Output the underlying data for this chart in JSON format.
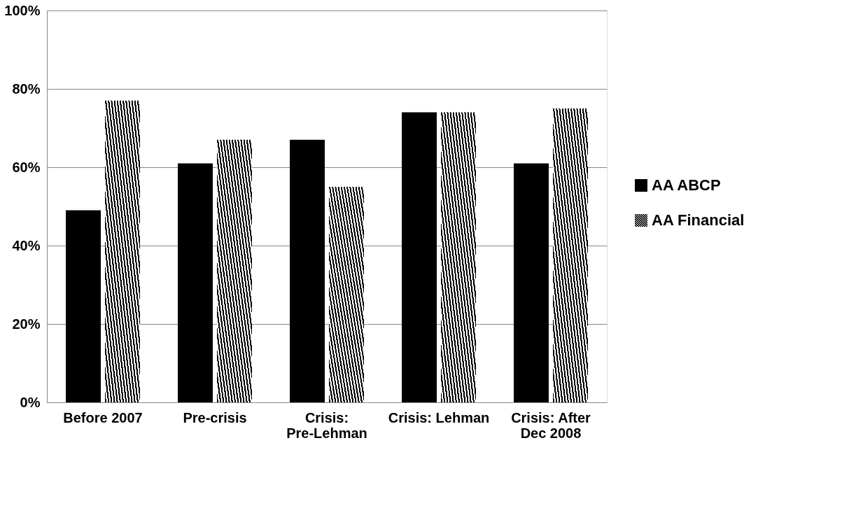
{
  "chart_data": {
    "type": "bar",
    "categories": [
      "Before 2007",
      "Pre-crisis",
      "Crisis: Pre-Lehman",
      "Crisis: Lehman",
      "Crisis: After Dec 2008"
    ],
    "series": [
      {
        "name": "AA ABCP",
        "color": "#000000",
        "values": [
          49,
          61,
          67,
          74,
          61
        ]
      },
      {
        "name": "AA Financial",
        "color": "#000000",
        "values": [
          77,
          67,
          55,
          74,
          75
        ]
      }
    ],
    "ylim": [
      0,
      100
    ],
    "yticks": [
      {
        "value": 0,
        "label": "0%"
      },
      {
        "value": 20,
        "label": "20%"
      },
      {
        "value": 40,
        "label": "40%"
      },
      {
        "value": 60,
        "label": "60%"
      },
      {
        "value": 80,
        "label": "80%"
      },
      {
        "value": 100,
        "label": "100%"
      }
    ],
    "grid": "y",
    "legend": "right"
  }
}
